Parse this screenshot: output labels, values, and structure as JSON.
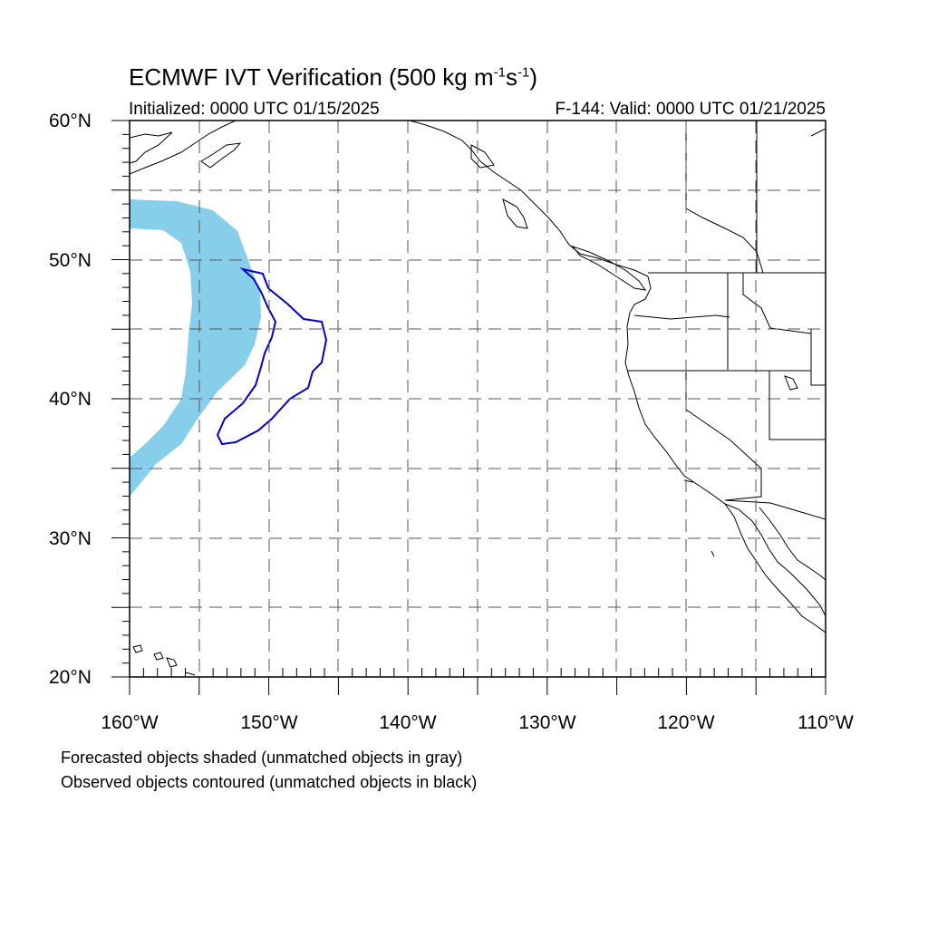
{
  "title": {
    "main": "ECMWF IVT Verification (500 kg m",
    "exp1": "-1",
    "mid": "s",
    "exp2": "-1",
    "end": ")"
  },
  "subtitle": {
    "initialized": "Initialized: 0000 UTC 01/15/2025",
    "valid": "F-144: Valid: 0000 UTC 01/21/2025"
  },
  "axes": {
    "lat_labels": [
      "60°N",
      "50°N",
      "40°N",
      "30°N",
      "20°N"
    ],
    "lon_labels": [
      "160°W",
      "150°W",
      "140°W",
      "130°W",
      "120°W",
      "110°W"
    ],
    "lon_range": [
      -160,
      -110
    ],
    "lat_range": [
      20,
      60
    ],
    "grid": "dashed every 5°"
  },
  "legend_notes": [
    "Forecasted objects shaded (unmatched objects in gray)",
    "Observed objects contoured (unmatched objects in black)"
  ],
  "colors": {
    "forecast_fill": "#87ceeb",
    "observed_contour": "#0000cc",
    "coastline": "#000000",
    "grid": "#666666"
  }
}
